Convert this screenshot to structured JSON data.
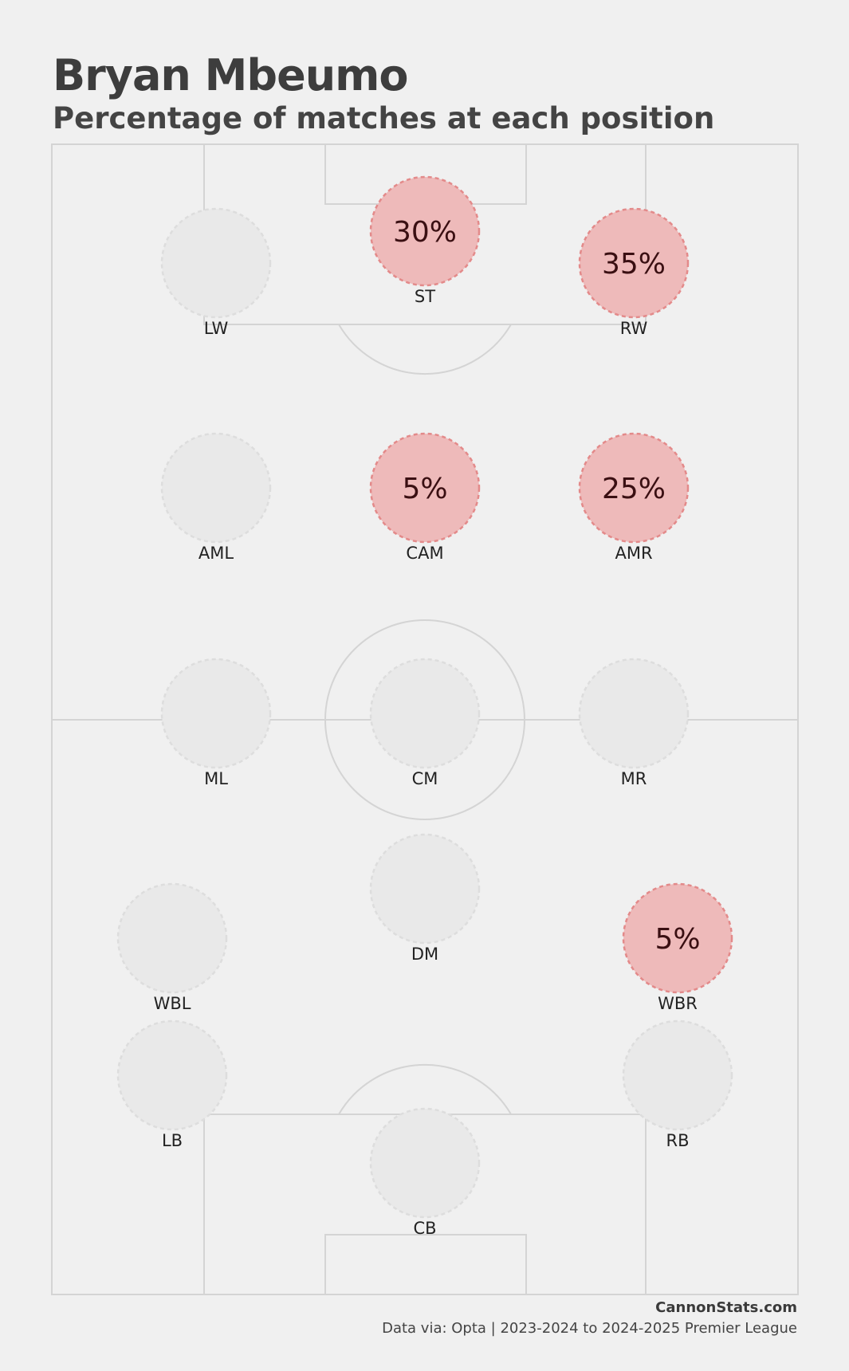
{
  "title": "Bryan Mbeumo",
  "subtitle": "Percentage of matches at each position",
  "footer": {
    "site": "CannonStats.com",
    "source": "Data via: Opta | 2023-2024 to 2024-2025 Premier League"
  },
  "colors": {
    "background": "#f0f0f0",
    "pitch_lines": "#d4d4d4",
    "empty_fill": "#e9e9e9",
    "empty_stroke": "#dddddd",
    "active_fill": "#eebaba",
    "active_stroke": "#e38a8a",
    "value_text": "#3a0f12"
  },
  "chart_data": {
    "type": "scatter",
    "unit": "%",
    "positions": [
      {
        "label": "LW",
        "value": null
      },
      {
        "label": "ST",
        "value": 30
      },
      {
        "label": "RW",
        "value": 35
      },
      {
        "label": "AML",
        "value": null
      },
      {
        "label": "CAM",
        "value": 5
      },
      {
        "label": "AMR",
        "value": 25
      },
      {
        "label": "ML",
        "value": null
      },
      {
        "label": "CM",
        "value": null
      },
      {
        "label": "MR",
        "value": null
      },
      {
        "label": "DM",
        "value": null
      },
      {
        "label": "WBL",
        "value": null
      },
      {
        "label": "WBR",
        "value": 5
      },
      {
        "label": "LB",
        "value": null
      },
      {
        "label": "RB",
        "value": null
      },
      {
        "label": "CB",
        "value": null
      }
    ]
  }
}
